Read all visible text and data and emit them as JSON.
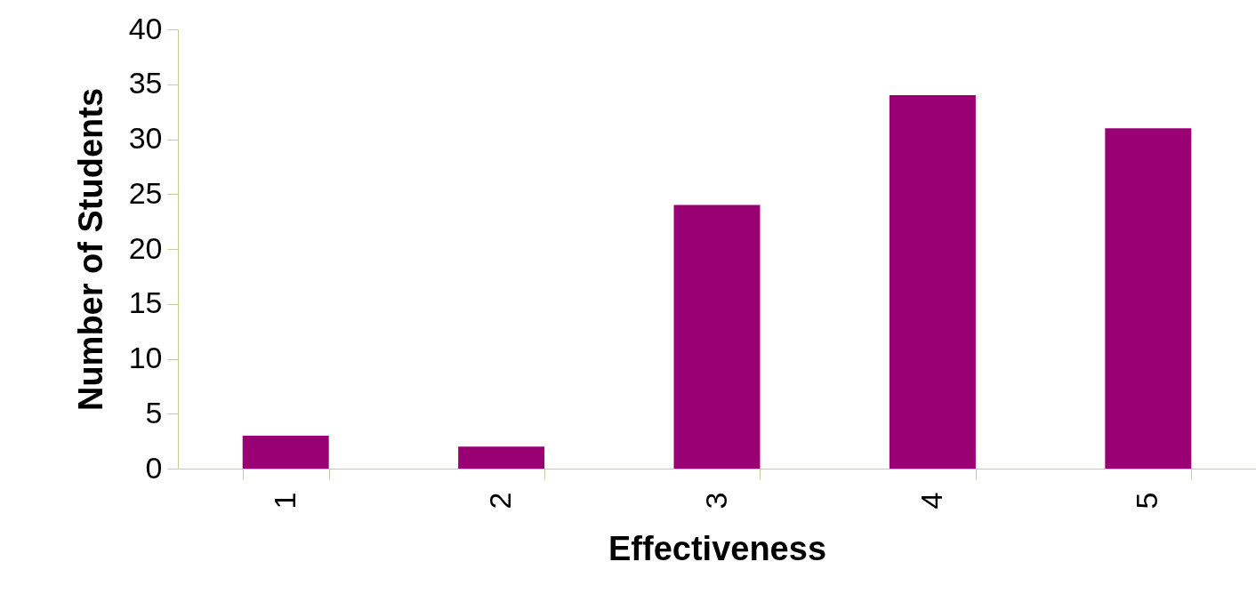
{
  "chart_data": {
    "type": "bar",
    "xlabel": "Effectiveness",
    "ylabel": "Number of Students",
    "categories": [
      "1",
      "2",
      "3",
      "4",
      "5"
    ],
    "series": [
      {
        "color": "#990073",
        "values": [
          3,
          2,
          24,
          34,
          31
        ]
      }
    ],
    "ylim": [
      0,
      40
    ],
    "yticks": [
      0,
      5,
      10,
      15,
      20,
      25,
      30,
      35,
      40
    ],
    "grid": false,
    "legend": false
  }
}
